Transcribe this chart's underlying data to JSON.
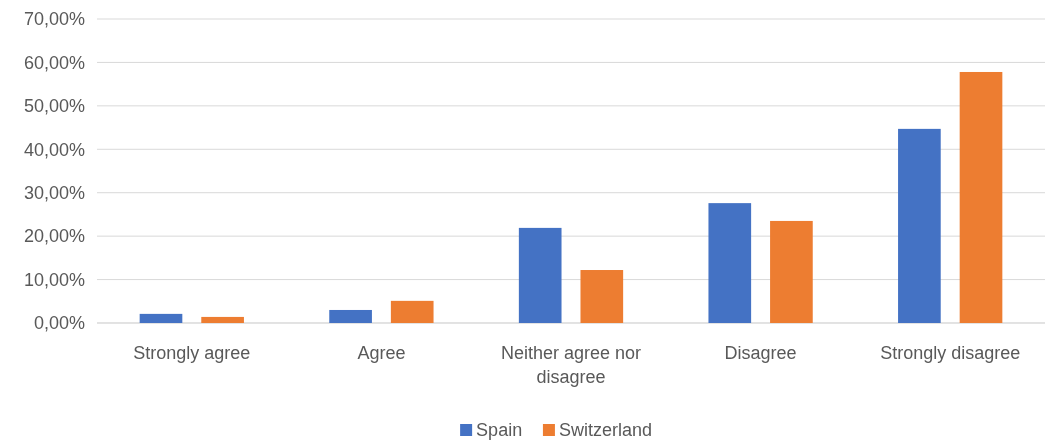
{
  "chart_data": {
    "type": "bar",
    "categories": [
      "Strongly agree",
      "Agree",
      "Neither agree nor disagree",
      "Disagree",
      "Strongly disagree"
    ],
    "series": [
      {
        "name": "Spain",
        "color": "#4472c4",
        "values": [
          2.1,
          3.0,
          21.9,
          27.6,
          44.7
        ]
      },
      {
        "name": "Switzerland",
        "color": "#ed7d31",
        "values": [
          1.4,
          5.1,
          12.2,
          23.5,
          57.8
        ]
      }
    ],
    "ylim": [
      0,
      70
    ],
    "yticks": [
      {
        "value": 0,
        "label": "0,00%"
      },
      {
        "value": 10,
        "label": "10,00%"
      },
      {
        "value": 20,
        "label": "20,00%"
      },
      {
        "value": 30,
        "label": "30,00%"
      },
      {
        "value": 40,
        "label": "40,00%"
      },
      {
        "value": 50,
        "label": "50,00%"
      },
      {
        "value": 60,
        "label": "60,00%"
      },
      {
        "value": 70,
        "label": "70,00%"
      }
    ],
    "grid": "y",
    "legend": "bottom"
  }
}
